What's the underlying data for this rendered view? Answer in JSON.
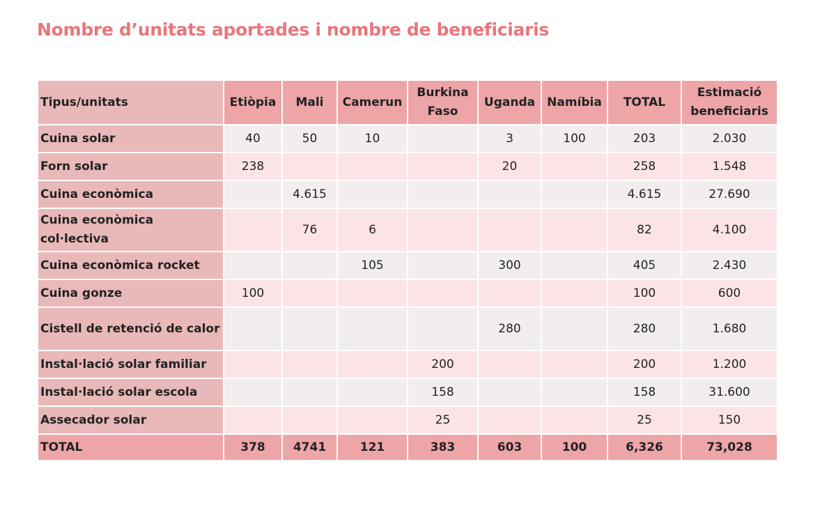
{
  "title": "Nombre d’unitats aportades i nombre de beneficiaris",
  "table": {
    "header": [
      "Tipus/unitats",
      "Etiòpia",
      "Mali",
      "Camerun",
      "Burkina Faso",
      "Uganda",
      "Namíbia",
      "TOTAL",
      "Estimació beneficiaris"
    ],
    "rows": [
      [
        "Cuina solar",
        "40",
        "50",
        "10",
        null,
        "3",
        "100",
        "203",
        "2.030"
      ],
      [
        "Forn solar",
        "238",
        null,
        null,
        null,
        "20",
        null,
        "258",
        "1.548"
      ],
      [
        "Cuina econòmica",
        null,
        "4.615",
        null,
        null,
        null,
        null,
        "4.615",
        "27.690"
      ],
      [
        "Cuina econòmica col·lectiva",
        null,
        "76",
        "6",
        null,
        null,
        null,
        "82",
        "4.100"
      ],
      [
        "Cuina econòmica rocket",
        null,
        null,
        "105",
        null,
        "300",
        null,
        "405",
        "2.430"
      ],
      [
        "Cuina gonze",
        "100",
        null,
        null,
        null,
        null,
        null,
        "100",
        "600"
      ],
      [
        "Cistell de retenció de calor",
        null,
        null,
        null,
        null,
        "280",
        null,
        "280",
        "1.680"
      ],
      [
        "Instal·lació solar familiar",
        null,
        null,
        null,
        "200",
        null,
        null,
        "200",
        "1.200"
      ],
      [
        "Instal·lació solar escola",
        null,
        null,
        null,
        "158",
        null,
        null,
        "158",
        "31.600"
      ],
      [
        "Assecador solar",
        null,
        null,
        null,
        "25",
        null,
        null,
        "25",
        "150"
      ]
    ],
    "total": [
      "TOTAL",
      "378",
      "4741",
      "121",
      "383",
      "603",
      "100",
      "6,326",
      "73,028"
    ]
  }
}
